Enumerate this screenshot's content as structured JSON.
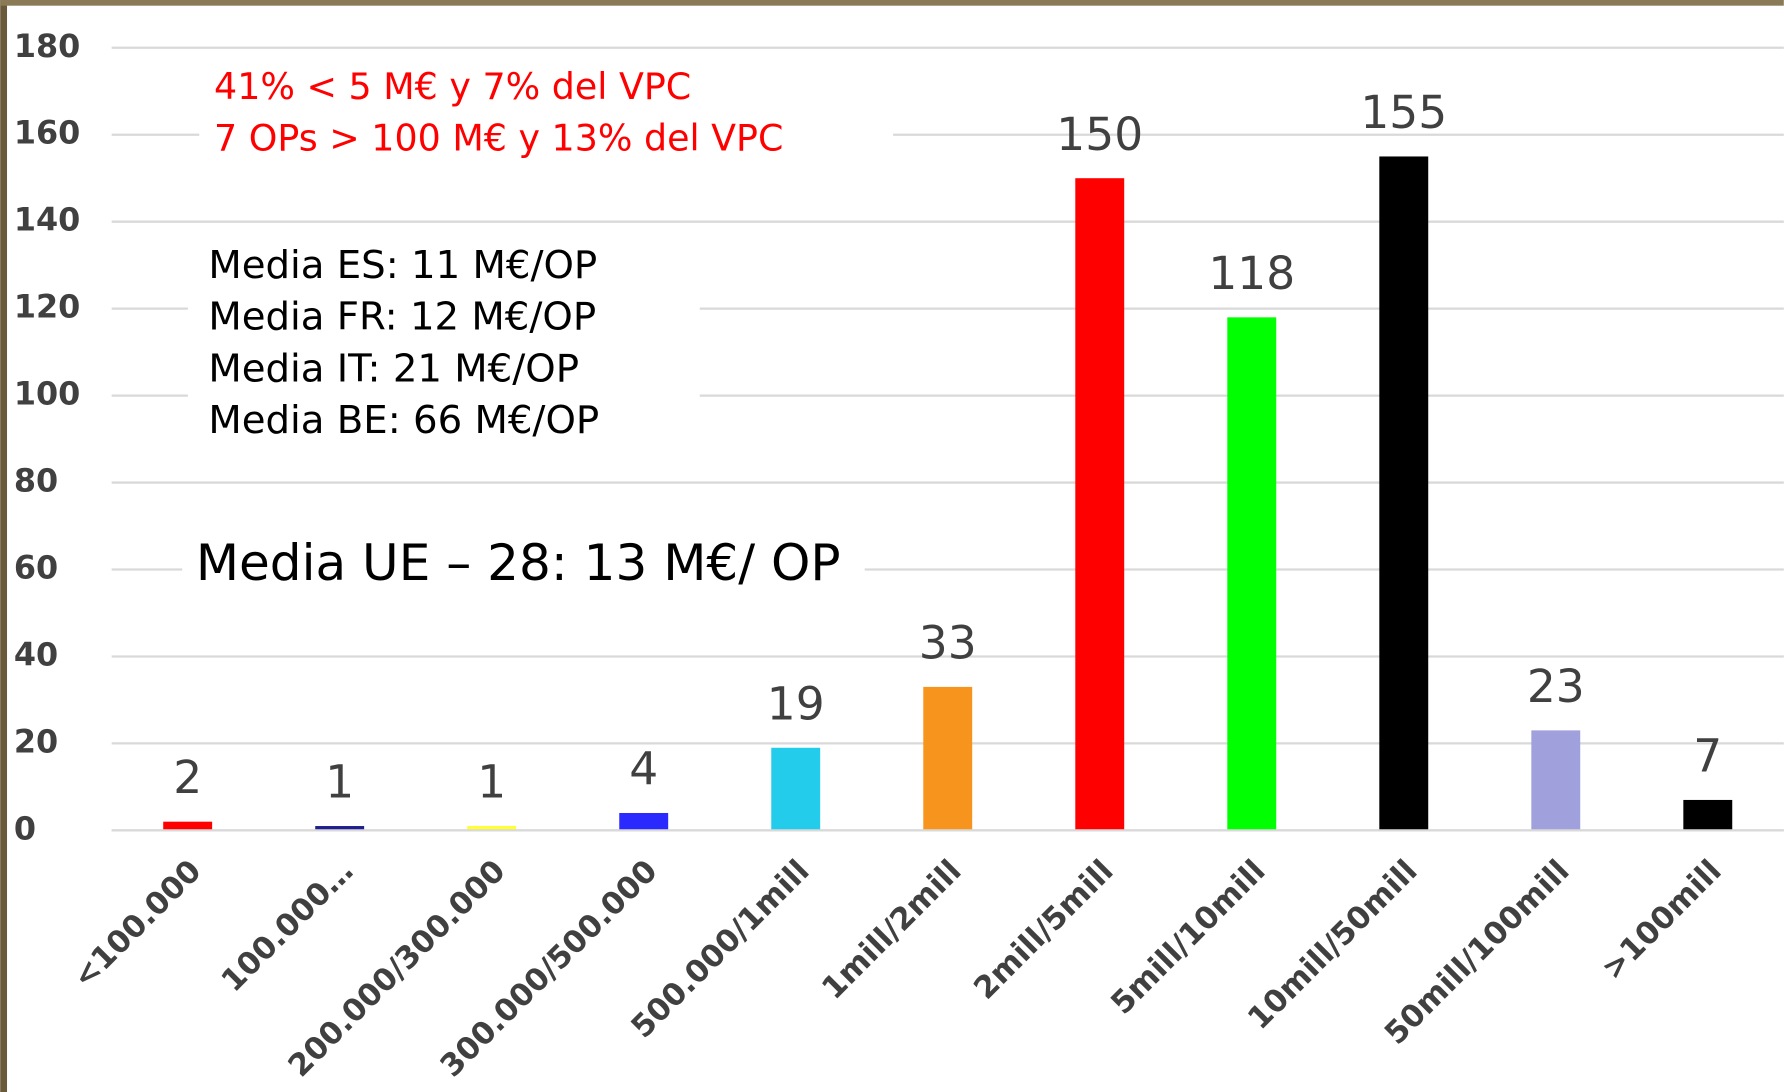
{
  "chart_data": {
    "type": "bar",
    "categories": [
      "<100.000",
      "100.000…",
      "200.000/300.000",
      "300.000/500.000",
      "500.000/1mill",
      "1mill/2mill",
      "2mill/5mill",
      "5mill/10mill",
      "10mill/50mill",
      "50mill/100mill",
      ">100mill"
    ],
    "values": [
      2,
      1,
      1,
      4,
      19,
      33,
      150,
      118,
      155,
      23,
      7
    ],
    "colors": [
      "#ff0000",
      "#1f1f8f",
      "#ffff33",
      "#2a2aff",
      "#22ccea",
      "#f7941d",
      "#ff0000",
      "#00ff00",
      "#000000",
      "#a0a0dc",
      "#000000"
    ],
    "ylim": [
      0,
      180
    ],
    "yticks": [
      0,
      20,
      40,
      60,
      80,
      100,
      120,
      140,
      160,
      180
    ],
    "grid": true,
    "annotations": [
      {
        "color": "#ff0000",
        "lines": [
          "41% < 5 M€ y 7% del VPC",
          "7 OPs > 100 M€ y 13% del VPC"
        ]
      },
      {
        "color": "#000000",
        "lines": [
          "Media ES: 11 M€/OP",
          "Media FR: 12 M€/OP",
          "Media IT: 21 M€/OP",
          "Media BE: 66 M€/OP"
        ]
      },
      {
        "color": "#000000",
        "lines": [
          "Media UE – 28: 13 M€/ OP"
        ]
      }
    ]
  }
}
